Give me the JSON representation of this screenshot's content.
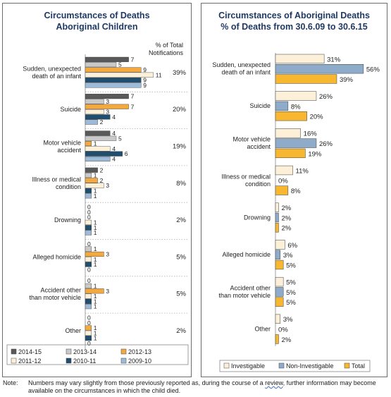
{
  "chart_data": [
    {
      "type": "bar",
      "orientation": "horizontal",
      "title": "Circumstances of Deaths",
      "subtitle": "Aboriginal Children",
      "pct_header": "% of Total Notifications",
      "categories": [
        "Sudden, unexpected death of an infant",
        "Suicide",
        "Motor vehicle accident",
        "Illness or medical condition",
        "Drowning",
        "Alleged homicide",
        "Accident other than motor vehicle",
        "Other"
      ],
      "pct_of_total": [
        "39%",
        "20%",
        "19%",
        "8%",
        "2%",
        "5%",
        "5%",
        "2%"
      ],
      "series": [
        {
          "name": "2014-15",
          "color": "#595959",
          "values": [
            7,
            7,
            4,
            2,
            0,
            0,
            0,
            0
          ]
        },
        {
          "name": "2013-14",
          "color": "#c9c9c9",
          "values": [
            5,
            3,
            5,
            1,
            0,
            1,
            1,
            0
          ]
        },
        {
          "name": "2012-13",
          "color": "#f3a93f",
          "values": [
            9,
            7,
            1,
            2,
            0,
            3,
            3,
            1
          ]
        },
        {
          "name": "2011-12",
          "color": "#fdf0d8",
          "values": [
            11,
            3,
            4,
            3,
            1,
            1,
            1,
            1
          ]
        },
        {
          "name": "2010-11",
          "color": "#1f4e6e",
          "values": [
            9,
            4,
            6,
            1,
            1,
            1,
            1,
            1
          ]
        },
        {
          "name": "2009-10",
          "color": "#9dbbd8",
          "values": [
            9,
            2,
            4,
            1,
            1,
            0,
            1,
            0
          ]
        }
      ],
      "legend_position": "bottom",
      "grid": false
    },
    {
      "type": "bar",
      "orientation": "horizontal",
      "title": "Circumstances of Aboriginal Deaths",
      "subtitle": "% of Deaths from 30.6.09 to 30.6.15",
      "categories": [
        "Sudden, unexpected death of an infant",
        "Suicide",
        "Motor vehicle accident",
        "Illness or medical condition",
        "Drowning",
        "Alleged homicide",
        "Accident other than motor vehicle",
        "Other"
      ],
      "series": [
        {
          "name": "Investigable",
          "color": "#fdf0d8",
          "values": [
            31,
            26,
            16,
            11,
            2,
            6,
            5,
            3
          ]
        },
        {
          "name": "Non-Investigable",
          "color": "#8eacc9",
          "values": [
            56,
            8,
            26,
            0,
            2,
            3,
            5,
            0
          ]
        },
        {
          "name": "Total",
          "color": "#f7b731",
          "values": [
            39,
            20,
            19,
            8,
            2,
            5,
            5,
            2
          ]
        }
      ],
      "value_suffix": "%",
      "legend_position": "bottom",
      "grid": false
    }
  ],
  "left_labels": [
    [
      "Sudden, unexpected",
      "death of an infant"
    ],
    [
      "Suicide"
    ],
    [
      "Motor vehicle",
      "accident"
    ],
    [
      "Illness or medical",
      "condition"
    ],
    [
      "Drowning"
    ],
    [
      "Alleged homicide"
    ],
    [
      "Accident other",
      "than motor vehicle"
    ],
    [
      "Other"
    ]
  ],
  "right_labels": [
    [
      "Sudden, unexpected",
      "death of an infant"
    ],
    [
      "Suicide"
    ],
    [
      "Motor vehicle",
      "accident"
    ],
    [
      "Illness or medical",
      "condition"
    ],
    [
      "Drowning"
    ],
    [
      "Alleged homicide"
    ],
    [
      "Accident other",
      "than motor vehicle"
    ],
    [
      "Other"
    ]
  ],
  "pct_header_lines": [
    "% of Total",
    "Notifications"
  ],
  "note": {
    "label": "Note:",
    "text_before": "Numbers may vary slightly from those previously reported as, during the course of a ",
    "text_link": "review",
    "text_after": ", further information may become available on the circumstances in which the child died."
  }
}
